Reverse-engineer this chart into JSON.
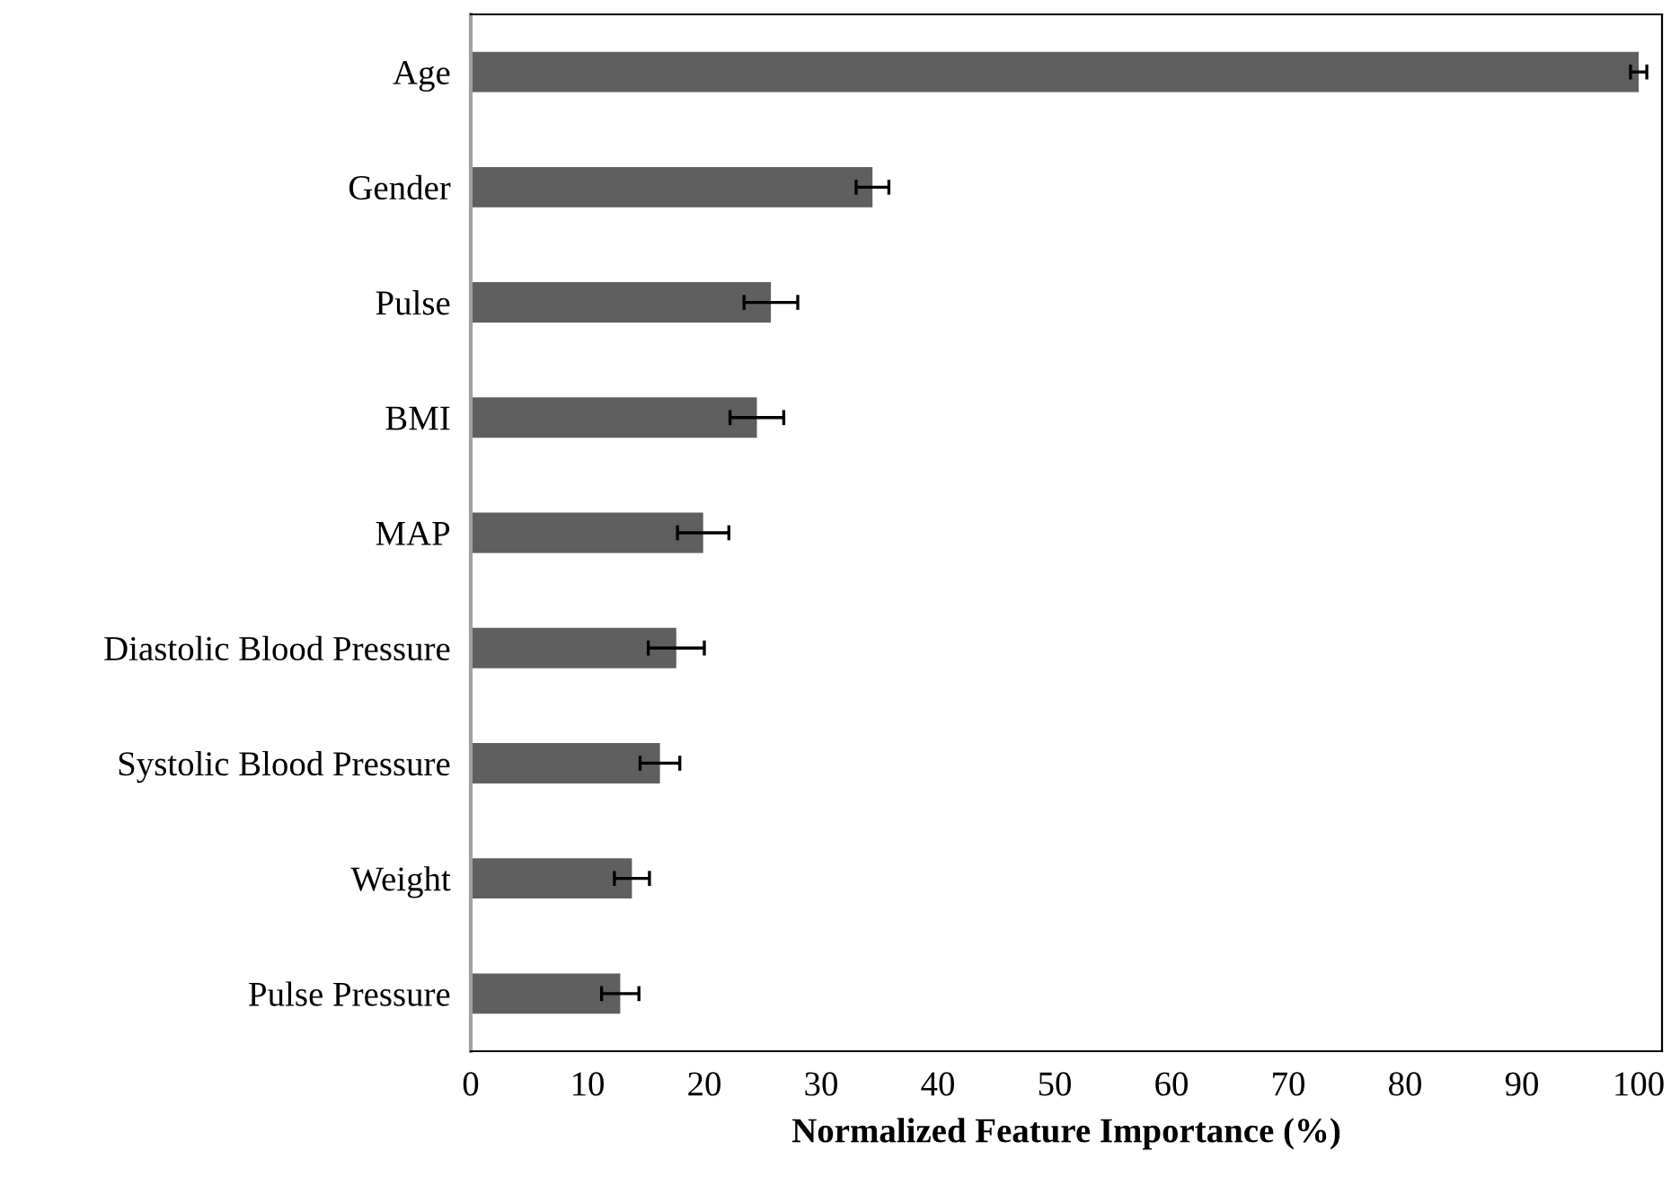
{
  "chart_data": {
    "type": "bar",
    "orientation": "horizontal",
    "xlabel": "Normalized Feature Importance (%)",
    "categories": [
      "Age",
      "Gender",
      "Pulse",
      "BMI",
      "MAP",
      "Diastolic Blood Pressure",
      "Systolic Blood Pressure",
      "Weight",
      "Pulse Pressure"
    ],
    "values": [
      100,
      34.4,
      25.7,
      24.5,
      19.9,
      17.6,
      16.2,
      13.8,
      12.8
    ],
    "errors": [
      0.7,
      1.4,
      2.3,
      2.3,
      2.2,
      2.4,
      1.7,
      1.5,
      1.6
    ],
    "color": "#5f5f5f",
    "xlim": [
      0,
      102
    ],
    "xticks": [
      0,
      10,
      20,
      30,
      40,
      50,
      60,
      70,
      80,
      90,
      100
    ],
    "grid": false
  }
}
